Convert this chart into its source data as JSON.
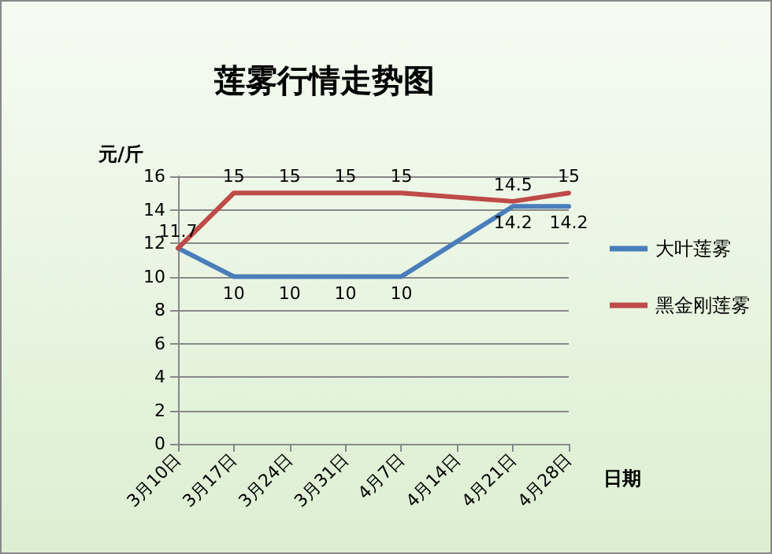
{
  "chart_data": {
    "type": "line",
    "title": "莲雾行情走势图",
    "ylabel": "元/斤",
    "xlabel": "日期",
    "categories": [
      "3月10日",
      "3月17日",
      "3月24日",
      "3月31日",
      "4月7日",
      "4月14日",
      "4月21日",
      "4月28日"
    ],
    "series": [
      {
        "name": "大叶莲雾",
        "color": "#4a7ebb",
        "values": [
          11.7,
          10,
          10,
          10,
          10,
          null,
          14.2,
          14.2
        ],
        "value_labels": [
          null,
          "10",
          "10",
          "10",
          "10",
          null,
          "14.2",
          "14.2"
        ]
      },
      {
        "name": "黑金刚莲雾",
        "color": "#be4b48",
        "values": [
          11.7,
          15,
          15,
          15,
          15,
          null,
          14.5,
          15
        ],
        "value_labels": [
          "11.7",
          "15",
          "15",
          "15",
          "15",
          null,
          "14.5",
          "15"
        ]
      }
    ],
    "ylim": [
      0,
      16
    ],
    "yticks": [
      0,
      2,
      4,
      6,
      8,
      10,
      12,
      14,
      16
    ],
    "grid": "y",
    "legend": "right",
    "marker": "none",
    "line_style": "solid"
  }
}
